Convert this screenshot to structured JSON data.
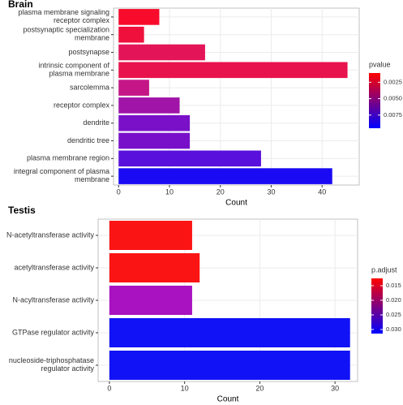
{
  "chart_data": [
    {
      "type": "bar",
      "orientation": "horizontal",
      "title": "Brain",
      "xlabel": "Count",
      "categories": [
        "plasma membrane signaling\nreceptor complex",
        "postsynaptic specialization\nmembrane",
        "postsynapse",
        "intrinsic component of\nplasma membrane",
        "sarcolemma",
        "receptor complex",
        "dendrite",
        "dendritic tree",
        "plasma membrane region",
        "integral component of plasma\nmembrane"
      ],
      "values": [
        8,
        5,
        17,
        45,
        6,
        12,
        14,
        14,
        28,
        42
      ],
      "colors": [
        "#f80c2c",
        "#f0103c",
        "#e41458",
        "#e8134c",
        "#c41686",
        "#a014a8",
        "#7a10c8",
        "#7810ca",
        "#5a10dc",
        "#1a0af4"
      ],
      "xlim": [
        -1,
        47.3
      ],
      "xticks": [
        0,
        10,
        20,
        30,
        40
      ],
      "grid": true,
      "colorbar": {
        "title": "pvalue",
        "lim": [
          0.0011,
          0.0095
        ],
        "ticks": [
          0.0025,
          0.005,
          0.0075
        ],
        "tick_labels": [
          "0.0025",
          "0.0050",
          "0.0075"
        ],
        "colors": [
          "#ff0000",
          "#0000ff"
        ]
      }
    },
    {
      "type": "bar",
      "orientation": "horizontal",
      "title": "Testis",
      "xlabel": "Count",
      "categories": [
        "N-acetyltransferase activity",
        "acetyltransferase activity",
        "N-acyltransferase activity",
        "GTPase regulator activity",
        "nucleoside-triphosphatase\nregulator activity"
      ],
      "values": [
        11,
        12,
        11,
        32,
        32
      ],
      "colors": [
        "#fb1414",
        "#fb1414",
        "#a812c0",
        "#1212f6",
        "#1212f6"
      ],
      "xlim": [
        -1.5,
        33
      ],
      "xticks": [
        0,
        10,
        20,
        30
      ],
      "grid": true,
      "colorbar": {
        "title": "p.adjust",
        "lim": [
          0.0125,
          0.0314
        ],
        "ticks": [
          0.015,
          0.02,
          0.025,
          0.03
        ],
        "tick_labels": [
          "0.015",
          "0.020",
          "0.025",
          "0.030"
        ],
        "colors": [
          "#ff0000",
          "#0000ff"
        ]
      }
    }
  ]
}
